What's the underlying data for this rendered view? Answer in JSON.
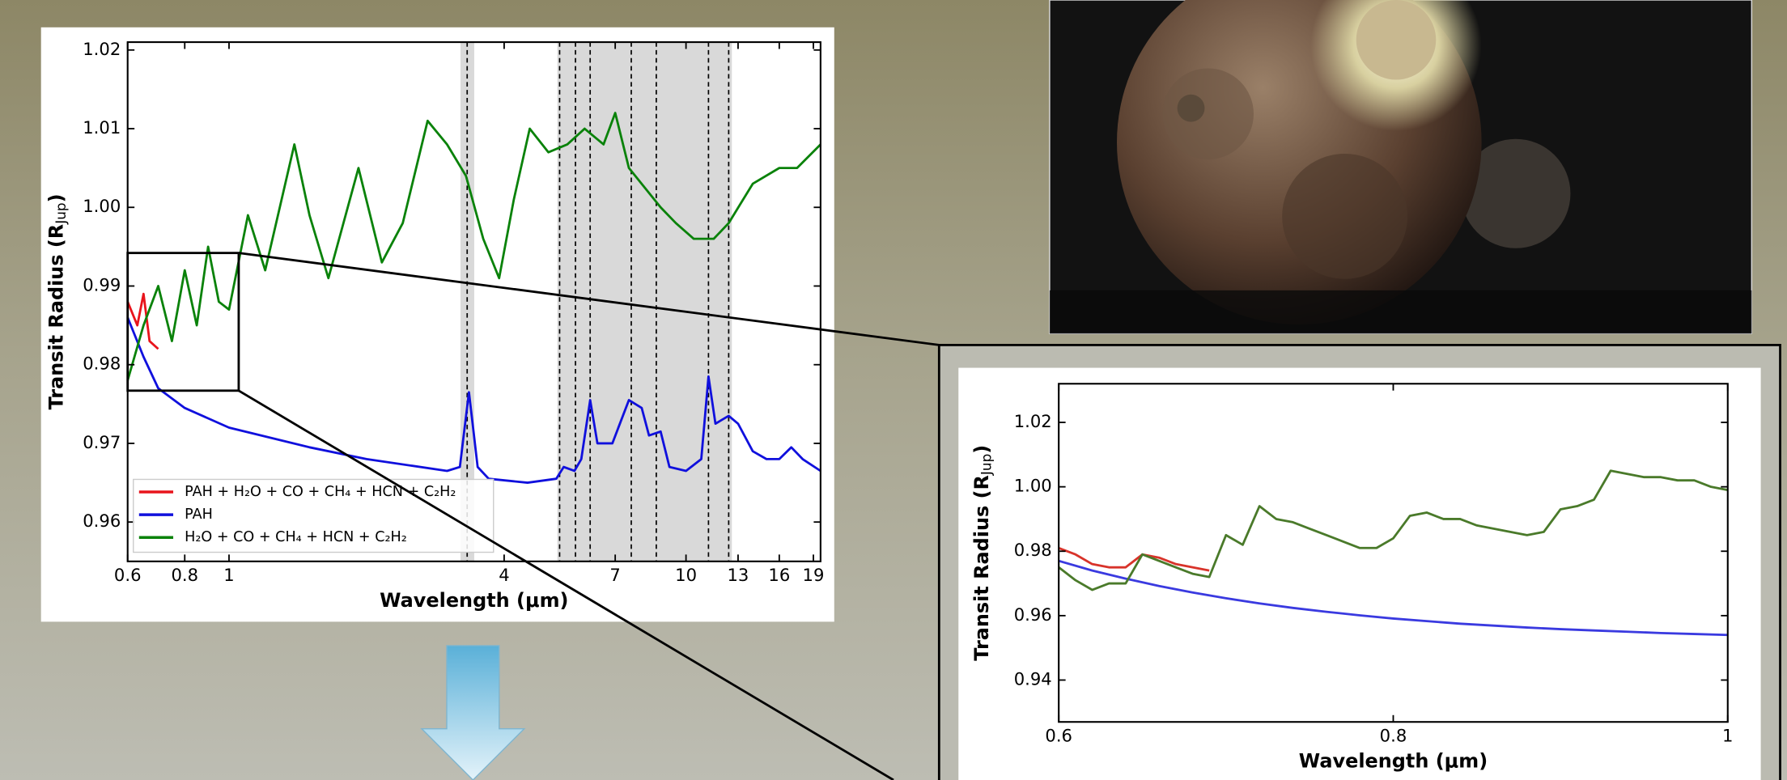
{
  "chart_data": [
    {
      "type": "line",
      "xscale": "log",
      "xlabel": "Wavelength (μm)",
      "ylabel": [
        "Transit Radius (R",
        "Jup",
        ")"
      ],
      "xlim": [
        0.6,
        19.7
      ],
      "ylim": [
        0.955,
        1.021
      ],
      "xticks": [
        0.6,
        0.8,
        1,
        4,
        7,
        10,
        13,
        16,
        19
      ],
      "yticks": [
        0.96,
        0.97,
        0.98,
        0.99,
        {
          "value": 1.0,
          "label": "1.00"
        },
        1.01,
        1.02
      ],
      "shaded_bands": [
        [
          3.21,
          3.44
        ],
        [
          5.23,
          12.6
        ]
      ],
      "dashed_lines": [
        3.32,
        5.29,
        5.73,
        6.17,
        7.59,
        8.61,
        11.2,
        12.4
      ],
      "zoom_box": {
        "x": [
          0.6,
          1.05
        ],
        "y": [
          0.9767,
          0.9942
        ]
      },
      "legend": "lower left",
      "series": [
        {
          "name": "PAH + H₂O + CO + CH₄ + HCN + C₂H₂",
          "color": "#e8141c",
          "x": [
            0.6,
            0.63,
            0.65,
            0.67,
            0.7
          ],
          "values": [
            0.988,
            0.985,
            0.989,
            0.983,
            0.982
          ]
        },
        {
          "name": "PAH",
          "color": "#1010dd",
          "x": [
            0.6,
            0.65,
            0.7,
            0.8,
            1.0,
            1.5,
            2.0,
            3.0,
            3.2,
            3.35,
            3.5,
            3.7,
            4.5,
            5.2,
            5.4,
            5.7,
            5.9,
            6.17,
            6.4,
            6.9,
            7.5,
            8.0,
            8.3,
            8.8,
            9.2,
            10.0,
            10.8,
            11.2,
            11.6,
            12.4,
            13.0,
            14,
            15,
            16,
            17,
            18,
            19.7
          ],
          "values": [
            0.986,
            0.981,
            0.977,
            0.9745,
            0.972,
            0.9695,
            0.968,
            0.9665,
            0.967,
            0.9765,
            0.967,
            0.9655,
            0.965,
            0.9655,
            0.967,
            0.9665,
            0.968,
            0.9755,
            0.97,
            0.97,
            0.9755,
            0.9745,
            0.971,
            0.9715,
            0.967,
            0.9665,
            0.968,
            0.9785,
            0.9725,
            0.9735,
            0.9725,
            0.969,
            0.968,
            0.968,
            0.9695,
            0.968,
            0.9665
          ]
        },
        {
          "name": "H₂O + CO + CH₄ + HCN + C₂H₂",
          "color": "#0a820a",
          "x": [
            0.6,
            0.65,
            0.7,
            0.75,
            0.8,
            0.85,
            0.9,
            0.95,
            1.0,
            1.1,
            1.2,
            1.39,
            1.5,
            1.65,
            1.92,
            2.16,
            2.4,
            2.72,
            3.0,
            3.3,
            3.6,
            3.9,
            4.2,
            4.55,
            5.0,
            5.5,
            6.0,
            6.6,
            7.0,
            7.5,
            8.8,
            9.5,
            10.4,
            11.5,
            12.4,
            14,
            16,
            17.5,
            19.7
          ],
          "values": [
            0.978,
            0.985,
            0.99,
            0.983,
            0.992,
            0.985,
            0.995,
            0.988,
            0.987,
            0.999,
            0.992,
            1.008,
            0.999,
            0.991,
            1.005,
            0.993,
            0.998,
            1.011,
            1.008,
            1.004,
            0.996,
            0.991,
            1.001,
            1.01,
            1.007,
            1.008,
            1.01,
            1.008,
            1.012,
            1.005,
            1.0,
            0.998,
            0.996,
            0.996,
            0.998,
            1.003,
            1.005,
            1.005,
            1.008
          ]
        }
      ]
    },
    {
      "type": "line",
      "xscale": "linear",
      "xlabel": "Wavelength (μm)",
      "ylabel": [
        "Transit Radius (R",
        "Jup",
        ")"
      ],
      "xlim": [
        0.6,
        1.0
      ],
      "ylim": [
        0.927,
        1.032
      ],
      "xticks": [
        0.6,
        0.8,
        1
      ],
      "yticks": [
        0.94,
        0.96,
        0.98,
        {
          "value": 1.0,
          "label": "1.00"
        },
        1.02
      ],
      "series": [
        {
          "color": "#d8332a",
          "x": [
            0.6,
            0.61,
            0.62,
            0.63,
            0.64,
            0.65,
            0.66,
            0.67,
            0.68,
            0.69
          ],
          "values": [
            0.981,
            0.979,
            0.976,
            0.975,
            0.975,
            0.979,
            0.978,
            0.976,
            0.975,
            0.974
          ]
        },
        {
          "color": "#3a3ae0",
          "x": [
            0.6,
            0.62,
            0.64,
            0.66,
            0.68,
            0.7,
            0.72,
            0.74,
            0.76,
            0.78,
            0.8,
            0.82,
            0.84,
            0.86,
            0.88,
            0.9,
            0.92,
            0.94,
            0.96,
            0.98,
            1.0
          ],
          "values": [
            0.977,
            0.974,
            0.9715,
            0.9692,
            0.9672,
            0.9654,
            0.9638,
            0.9624,
            0.9612,
            0.9601,
            0.9591,
            0.9583,
            0.9575,
            0.9569,
            0.9563,
            0.9558,
            0.9554,
            0.955,
            0.9546,
            0.9543,
            0.954
          ]
        },
        {
          "color": "#4a7a2a",
          "x": [
            0.6,
            0.61,
            0.62,
            0.63,
            0.64,
            0.65,
            0.66,
            0.67,
            0.68,
            0.69,
            0.7,
            0.71,
            0.72,
            0.73,
            0.74,
            0.75,
            0.76,
            0.77,
            0.78,
            0.79,
            0.8,
            0.81,
            0.82,
            0.83,
            0.84,
            0.85,
            0.86,
            0.87,
            0.88,
            0.89,
            0.9,
            0.91,
            0.92,
            0.93,
            0.94,
            0.95,
            0.96,
            0.97,
            0.98,
            0.99,
            1.0
          ],
          "values": [
            0.975,
            0.971,
            0.968,
            0.97,
            0.97,
            0.979,
            0.977,
            0.975,
            0.973,
            0.972,
            0.985,
            0.982,
            0.994,
            0.99,
            0.989,
            0.987,
            0.985,
            0.983,
            0.981,
            0.981,
            0.984,
            0.991,
            0.992,
            0.99,
            0.99,
            0.988,
            0.987,
            0.986,
            0.985,
            0.986,
            0.993,
            0.994,
            0.996,
            1.005,
            1.004,
            1.003,
            1.003,
            1.002,
            1.002,
            1.0,
            0.999
          ]
        }
      ]
    }
  ]
}
